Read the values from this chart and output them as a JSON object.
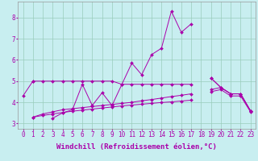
{
  "xlabel": "Windchill (Refroidissement éolien,°C)",
  "background_color": "#c8eef0",
  "line_color": "#aa00aa",
  "grid_color": "#99ccbb",
  "x_values": [
    0,
    1,
    2,
    3,
    4,
    5,
    6,
    7,
    8,
    9,
    10,
    11,
    12,
    13,
    14,
    15,
    16,
    17,
    18,
    19,
    20,
    21,
    22,
    23
  ],
  "s1": [
    4.3,
    5.0,
    null,
    3.25,
    3.5,
    3.65,
    4.85,
    3.85,
    4.45,
    3.85,
    4.85,
    5.85,
    5.3,
    6.25,
    6.55,
    8.3,
    7.3,
    7.7,
    null,
    5.15,
    4.7,
    4.4,
    4.4,
    3.6
  ],
  "s2": [
    null,
    5.0,
    5.0,
    5.0,
    5.0,
    5.0,
    5.0,
    5.0,
    5.0,
    5.0,
    4.85,
    4.85,
    4.85,
    4.85,
    4.85,
    4.85,
    4.85,
    4.85,
    null,
    5.15,
    4.7,
    4.4,
    4.4,
    3.6
  ],
  "s3": [
    null,
    3.3,
    3.45,
    3.55,
    3.65,
    3.7,
    3.75,
    3.8,
    3.85,
    3.9,
    3.95,
    4.0,
    4.07,
    4.13,
    4.2,
    4.27,
    4.33,
    4.4,
    null,
    4.6,
    4.7,
    4.4,
    4.4,
    3.6
  ],
  "s4": [
    null,
    3.3,
    3.38,
    3.45,
    3.52,
    3.58,
    3.63,
    3.68,
    3.73,
    3.78,
    3.83,
    3.87,
    3.91,
    3.95,
    3.99,
    4.02,
    4.06,
    4.1,
    null,
    4.5,
    4.6,
    4.3,
    4.3,
    3.55
  ],
  "ylim": [
    2.75,
    8.75
  ],
  "xlim": [
    -0.5,
    23.5
  ],
  "yticks": [
    3,
    4,
    5,
    6,
    7,
    8
  ],
  "xticks": [
    0,
    1,
    2,
    3,
    4,
    5,
    6,
    7,
    8,
    9,
    10,
    11,
    12,
    13,
    14,
    15,
    16,
    17,
    18,
    19,
    20,
    21,
    22,
    23
  ],
  "tick_fontsize": 5.5,
  "xlabel_fontsize": 6.5
}
